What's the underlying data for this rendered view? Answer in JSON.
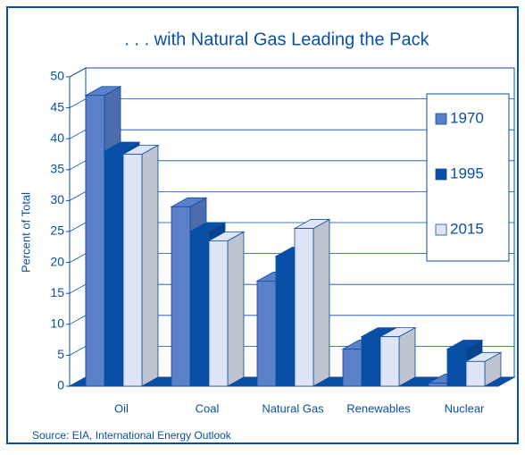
{
  "chart_data": {
    "type": "bar3d",
    "title": ". . . with Natural Gas Leading the Pack",
    "ylabel": "Percent of Total",
    "source": "Source: EIA, International Energy Outlook",
    "categories": [
      "Oil",
      "Coal",
      "Natural Gas",
      "Renewables",
      "Nuclear"
    ],
    "series": [
      {
        "name": "1970",
        "color": "#5b7fc9",
        "values": [
          47,
          29,
          17,
          6,
          0.5
        ]
      },
      {
        "name": "1995",
        "color": "#0a4fa6",
        "values": [
          38,
          25,
          21,
          8,
          6
        ]
      },
      {
        "name": "2015",
        "color": "#dfe5f6",
        "values": [
          37.5,
          23.5,
          25.5,
          8,
          4
        ]
      }
    ],
    "ylim": [
      0,
      50
    ],
    "yticks": [
      0,
      5,
      10,
      15,
      20,
      25,
      30,
      35,
      40,
      45,
      50
    ],
    "grid": true
  }
}
